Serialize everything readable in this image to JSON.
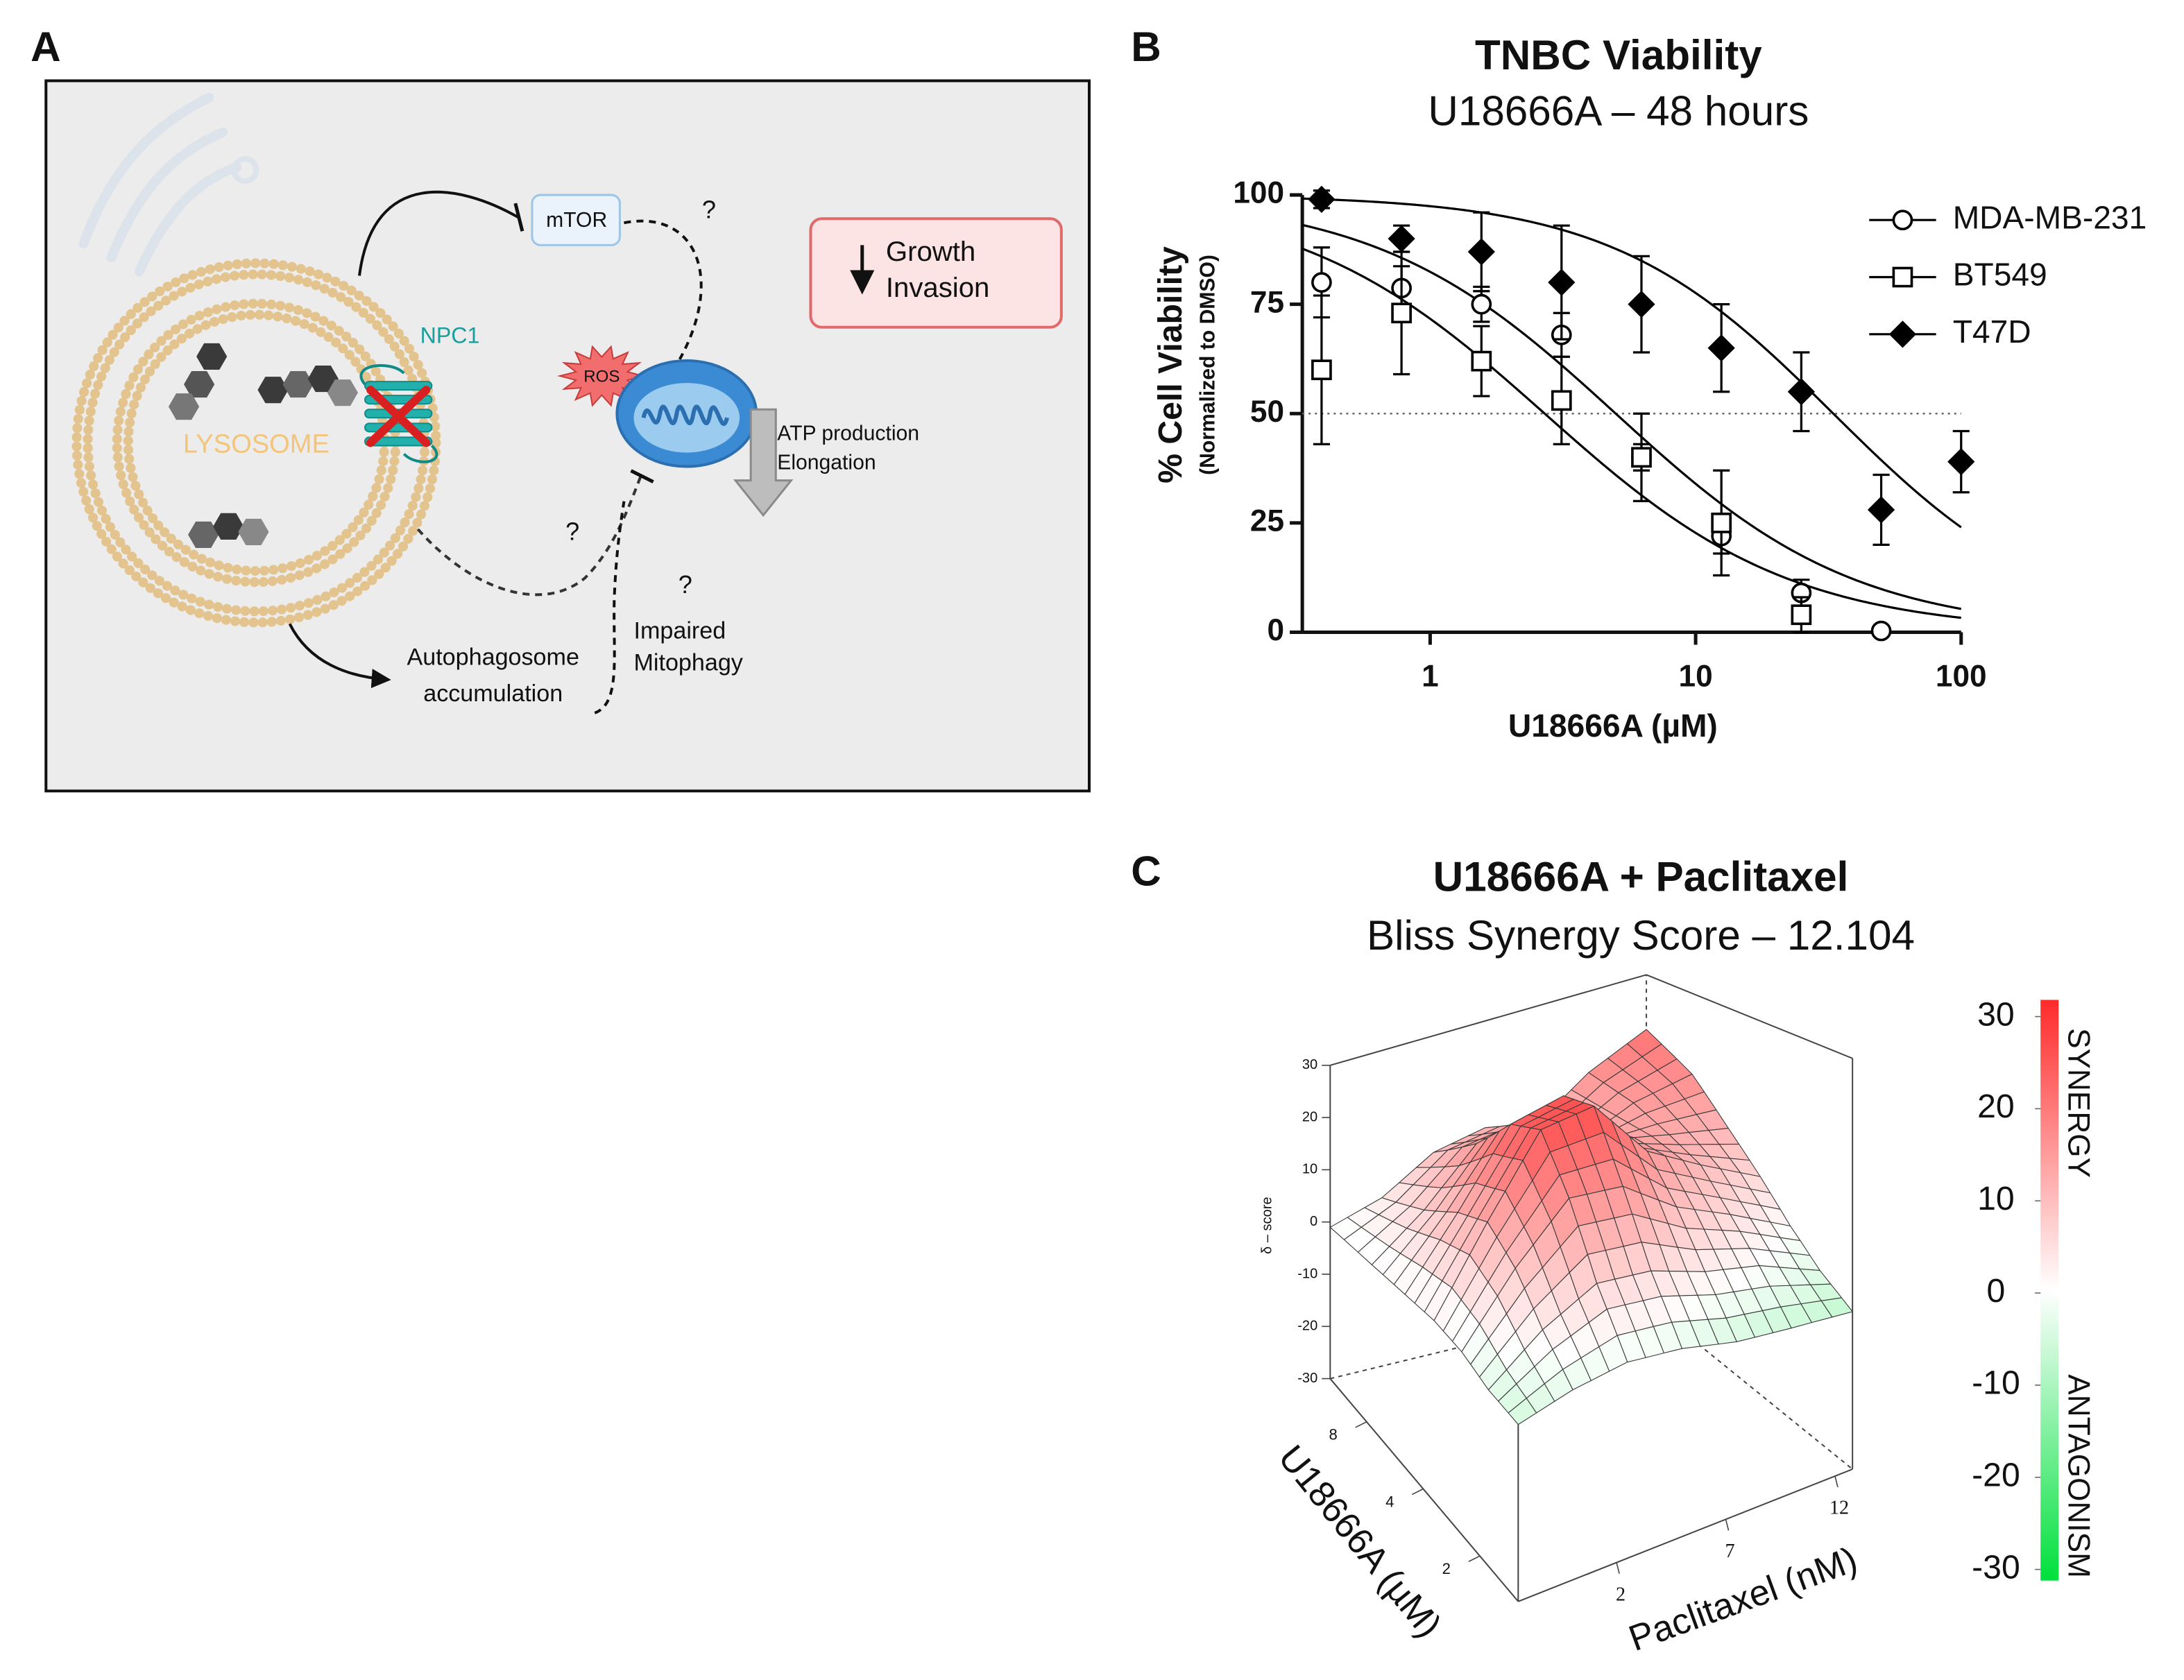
{
  "panel_labels": [
    "A",
    "B",
    "C"
  ],
  "diagram": {
    "lysosome": "LYSOSOME",
    "npc1": "NPC1",
    "mtor": "mTOR",
    "ros": "ROS",
    "questions": [
      "?",
      "?",
      "?"
    ],
    "atp": [
      "ATP production",
      "Elongation"
    ],
    "outcome": [
      "Growth",
      "Invasion"
    ],
    "autophagosome": [
      "Autophagosome",
      "accumulation"
    ],
    "mitophagy": [
      "Impaired",
      "Mitophagy"
    ]
  },
  "chart_data": [
    {
      "type": "scatter",
      "title": "TNBC Viability",
      "subtitle": "U18666A – 48 hours",
      "xlabel": "U18666A (µM)",
      "ylabel": "% Cell Viability",
      "ylabel_note": "(Normalized to DMSO)",
      "x": [
        0.39,
        0.78,
        1.56,
        3.125,
        6.25,
        12.5,
        25,
        50,
        100
      ],
      "xlog": true,
      "xlim": [
        0.33,
        100
      ],
      "xticks": [
        1,
        10,
        100
      ],
      "ylim": [
        0,
        100
      ],
      "yticks": [
        0,
        25,
        50,
        75,
        100
      ],
      "reference_line": 50,
      "legend": "upper right",
      "series": [
        {
          "name": "MDA-MB-231",
          "color": "#000000",
          "marker": "circle",
          "filled": false,
          "values": [
            80,
            78.7,
            75,
            68,
            40,
            22,
            9,
            0.3,
            null
          ],
          "errors": [
            8,
            5,
            4,
            5,
            3,
            4,
            3,
            1,
            null
          ],
          "fit": {
            "top": 100,
            "bottom": 0,
            "ic50": 5,
            "hill": 0.96
          }
        },
        {
          "name": "BT549",
          "color": "#000000",
          "marker": "square",
          "filled": false,
          "values": [
            60,
            73,
            62,
            53,
            40,
            25,
            4,
            null,
            null
          ],
          "errors": [
            17,
            14,
            8,
            10,
            10,
            12,
            4,
            null,
            null
          ],
          "fit": {
            "top": 100,
            "bottom": 0,
            "ic50": 2.7,
            "hill": 0.935
          }
        },
        {
          "name": "T47D",
          "color": "#000000",
          "marker": "diamond",
          "filled": true,
          "values": [
            99,
            90,
            87,
            80,
            75,
            65,
            55,
            28,
            39
          ],
          "errors": [
            2,
            3,
            9,
            13,
            11,
            10,
            9,
            8,
            7
          ],
          "fit": {
            "top": 100,
            "bottom": 0,
            "ic50": 33,
            "hill": 1.04
          }
        }
      ]
    },
    {
      "type": "surface",
      "title": "U18666A + Paclitaxel",
      "subtitle": "Bliss Synergy Score – 12.104",
      "xlabel": "Paclitaxel (nM)",
      "ylabel": "U18666A (µM)",
      "zlabel": "δ – score",
      "x": [
        -2.5,
        0,
        2.5,
        5,
        7.5,
        10,
        12.8
      ],
      "y": [
        1.25,
        1.8,
        2.5,
        3.5,
        5,
        7.5,
        12.5
      ],
      "ylog": true,
      "xlim": [
        -2.5,
        12.8
      ],
      "ylim": [
        1.25,
        12.5
      ],
      "zlim": [
        -30,
        30
      ],
      "xticks": [
        2,
        7,
        12
      ],
      "yticks": [
        2,
        4,
        8
      ],
      "zticks": [
        -30,
        -20,
        -10,
        0,
        10,
        20,
        30
      ],
      "z": [
        [
          -5,
          -3,
          -2,
          -3,
          -5,
          -6,
          -7
        ],
        [
          -4,
          2,
          6,
          5,
          2,
          0,
          -4
        ],
        [
          -2,
          8,
          16,
          15,
          9,
          5,
          0
        ],
        [
          -1,
          12,
          24,
          25,
          15,
          10,
          5
        ],
        [
          -1,
          10,
          22,
          24,
          14,
          12,
          10
        ],
        [
          -1,
          6,
          15,
          16,
          10,
          14,
          16
        ],
        [
          -1,
          2,
          8,
          10,
          8,
          15,
          20
        ]
      ],
      "colors": {
        "high": "#ff2a2a",
        "mid": "#ffffff",
        "low": "#00e03c"
      },
      "colorbar": {
        "lim": [
          -30,
          30
        ],
        "ticks": [
          30,
          20,
          10,
          0,
          -10,
          -20,
          -30
        ],
        "labels": [
          "SYNERGY",
          "ANTAGONISM"
        ]
      }
    }
  ]
}
